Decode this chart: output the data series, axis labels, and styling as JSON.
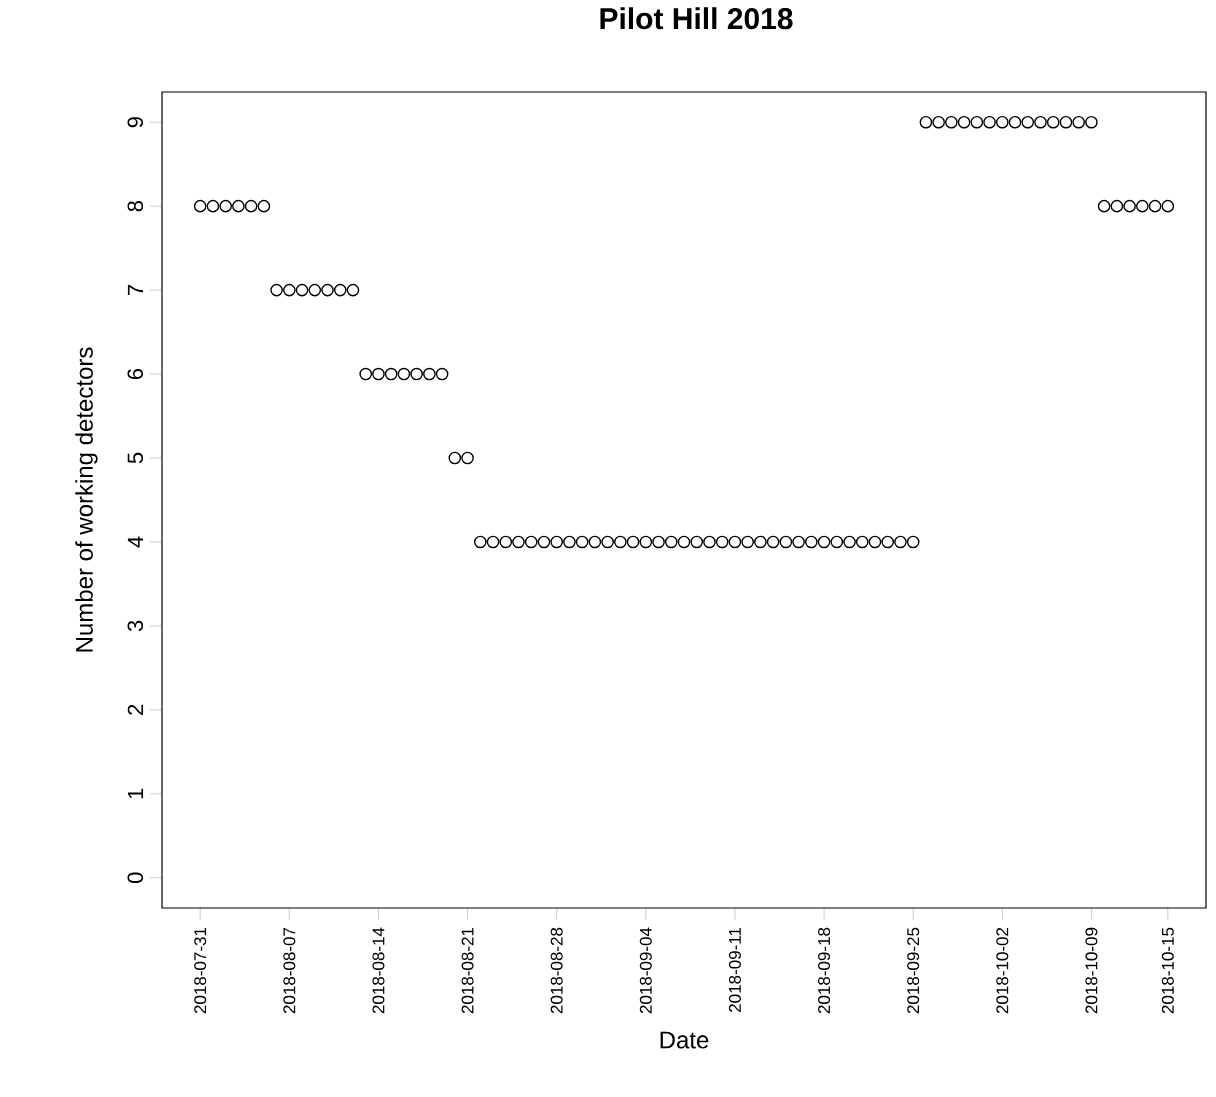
{
  "chart_data": {
    "type": "scatter",
    "title": "Pilot Hill 2018",
    "xlabel": "Date",
    "ylabel": "Number of working detectors",
    "x": [
      "2018-07-31",
      "2018-08-01",
      "2018-08-02",
      "2018-08-03",
      "2018-08-04",
      "2018-08-05",
      "2018-08-06",
      "2018-08-07",
      "2018-08-08",
      "2018-08-09",
      "2018-08-10",
      "2018-08-11",
      "2018-08-12",
      "2018-08-13",
      "2018-08-14",
      "2018-08-15",
      "2018-08-16",
      "2018-08-17",
      "2018-08-18",
      "2018-08-19",
      "2018-08-20",
      "2018-08-21",
      "2018-08-22",
      "2018-08-23",
      "2018-08-24",
      "2018-08-25",
      "2018-08-26",
      "2018-08-27",
      "2018-08-28",
      "2018-08-29",
      "2018-08-30",
      "2018-08-31",
      "2018-09-01",
      "2018-09-02",
      "2018-09-03",
      "2018-09-04",
      "2018-09-05",
      "2018-09-06",
      "2018-09-07",
      "2018-09-08",
      "2018-09-09",
      "2018-09-10",
      "2018-09-11",
      "2018-09-12",
      "2018-09-13",
      "2018-09-14",
      "2018-09-15",
      "2018-09-16",
      "2018-09-17",
      "2018-09-18",
      "2018-09-19",
      "2018-09-20",
      "2018-09-21",
      "2018-09-22",
      "2018-09-23",
      "2018-09-24",
      "2018-09-25",
      "2018-09-26",
      "2018-09-27",
      "2018-09-28",
      "2018-09-29",
      "2018-09-30",
      "2018-10-01",
      "2018-10-02",
      "2018-10-03",
      "2018-10-04",
      "2018-10-05",
      "2018-10-06",
      "2018-10-07",
      "2018-10-08",
      "2018-10-09",
      "2018-10-10",
      "2018-10-11",
      "2018-10-12",
      "2018-10-13",
      "2018-10-14",
      "2018-10-15"
    ],
    "values": [
      8,
      8,
      8,
      8,
      8,
      8,
      7,
      7,
      7,
      7,
      7,
      7,
      7,
      6,
      6,
      6,
      6,
      6,
      6,
      6,
      5,
      5,
      4,
      4,
      4,
      4,
      4,
      4,
      4,
      4,
      4,
      4,
      4,
      4,
      4,
      4,
      4,
      4,
      4,
      4,
      4,
      4,
      4,
      4,
      4,
      4,
      4,
      4,
      4,
      4,
      4,
      4,
      4,
      4,
      4,
      4,
      4,
      9,
      9,
      9,
      9,
      9,
      9,
      9,
      9,
      9,
      9,
      9,
      9,
      9,
      9,
      8,
      8,
      8,
      8,
      8,
      8
    ],
    "color": "#000000",
    "marker": "circle",
    "grid": false,
    "xlim": [
      "2018-07-28",
      "2018-10-18"
    ],
    "xticks": [
      "2018-07-31",
      "2018-08-07",
      "2018-08-14",
      "2018-08-21",
      "2018-08-28",
      "2018-09-04",
      "2018-09-11",
      "2018-09-18",
      "2018-09-25",
      "2018-10-02",
      "2018-10-09",
      "2018-10-15"
    ],
    "ylim": [
      -0.36,
      9.36
    ],
    "yticks": [
      0,
      1,
      2,
      3,
      4,
      5,
      6,
      7,
      8,
      9
    ]
  }
}
